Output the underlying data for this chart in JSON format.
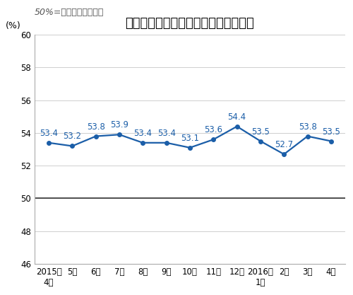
{
  "title": "非制造业商务活动指数（经季节调整）",
  "subtitle": "50%=与上月比较无变化",
  "ylabel": "(%)",
  "x_labels": [
    "2015年\n4月",
    "5月",
    "6月",
    "7月",
    "8月",
    "9月",
    "10月",
    "11月",
    "12月",
    "2016年\n1月",
    "2月",
    "3月",
    "4月"
  ],
  "values": [
    53.4,
    53.2,
    53.8,
    53.9,
    53.4,
    53.4,
    53.1,
    53.6,
    54.4,
    53.5,
    52.7,
    53.8,
    53.5
  ],
  "ylim": [
    46,
    60
  ],
  "yticks": [
    46,
    48,
    50,
    52,
    54,
    56,
    58,
    60
  ],
  "reference_line": 50,
  "line_color": "#1B5EA8",
  "marker_color": "#1B5EA8",
  "background_color": "#ffffff",
  "plot_bg_color": "#ffffff",
  "title_fontsize": 13,
  "subtitle_fontsize": 9,
  "label_fontsize": 9,
  "tick_fontsize": 8.5,
  "annotation_fontsize": 8.5,
  "grid_color": "#c8c8c8",
  "ref_line_color": "#333333"
}
